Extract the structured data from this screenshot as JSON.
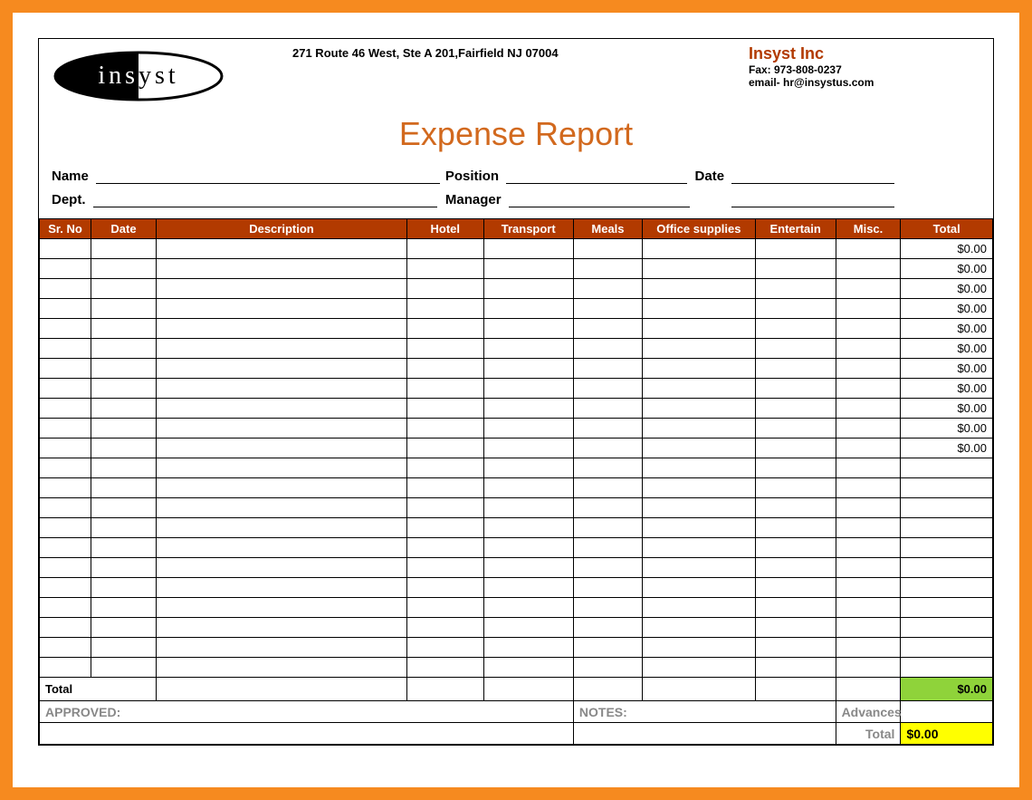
{
  "header": {
    "address": "271 Route 46 West, Ste A 201,Fairfield NJ 07004",
    "company_name": "Insyst Inc",
    "fax_line": "Fax: 973-808-0237",
    "email_line": "email- hr@insystus.com",
    "logo_text": "insyst"
  },
  "title": "Expense Report",
  "fields": {
    "name_lbl": "Name",
    "dept_lbl": "Dept.",
    "position_lbl": "Position",
    "manager_lbl": "Manager",
    "date_lbl": "Date"
  },
  "columns": {
    "sr": "Sr. No",
    "date": "Date",
    "desc": "Description",
    "hotel": "Hotel",
    "transport": "Transport",
    "meals": "Meals",
    "office": "Office supplies",
    "entertain": "Entertain",
    "misc": "Misc.",
    "total": "Total"
  },
  "row_total_value": "$0.00",
  "totals": {
    "label": "Total",
    "grand": "$0.00",
    "approved_lbl": "APPROVED:",
    "notes_lbl": "NOTES:",
    "advances_lbl": "Advances",
    "final_total_lbl": "Total",
    "final_total_val": "$0.00"
  },
  "style": {
    "outer_border_color": "#f68a1f",
    "header_bg": "#b23a00",
    "title_color": "#d2691e",
    "green_cell": "#8fd33a",
    "yellow_cell": "#ffff00",
    "rows_with_total": 11,
    "rows_blank": 11
  }
}
